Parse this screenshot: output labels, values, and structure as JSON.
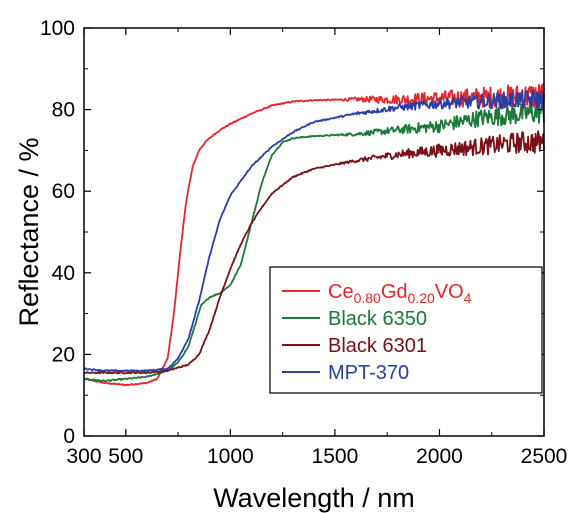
{
  "chart_data": {
    "type": "line",
    "title": "",
    "xlabel": "Wavelength / nm",
    "ylabel": "Reflectance / %",
    "xlim": [
      300,
      2500
    ],
    "ylim": [
      0,
      100
    ],
    "x_ticks": [
      300,
      500,
      1000,
      1500,
      2000,
      2500
    ],
    "x_tick_labels": [
      "300",
      "500",
      "1000",
      "1500",
      "2000",
      "2500"
    ],
    "y_ticks": [
      0,
      20,
      40,
      60,
      80,
      100
    ],
    "y_tick_labels": [
      "0",
      "20",
      "40",
      "60",
      "80",
      "100"
    ],
    "grid": false,
    "legend_position": "lower-right",
    "series": [
      {
        "name": "Ce0.80Gd0.20VO4",
        "name_parts": [
          {
            "text": "Ce",
            "sub": false
          },
          {
            "text": "0.80",
            "sub": true
          },
          {
            "text": "Gd",
            "sub": false
          },
          {
            "text": "0.20",
            "sub": true
          },
          {
            "text": "VO",
            "sub": false
          },
          {
            "text": "4",
            "sub": true
          }
        ],
        "color": "#e8252b",
        "noise": [
          [
            1800,
            1.2
          ],
          [
            2500,
            3.5
          ]
        ],
        "x": [
          300,
          400,
          500,
          600,
          650,
          700,
          730,
          760,
          790,
          820,
          850,
          880,
          900,
          950,
          1000,
          1100,
          1200,
          1300,
          1400,
          1600,
          1800,
          2000,
          2200,
          2400,
          2500
        ],
        "y": [
          14,
          13,
          12.5,
          13,
          14,
          19,
          30,
          45,
          58,
          66,
          70,
          72,
          73,
          75,
          76.5,
          79,
          81,
          82,
          82.3,
          82.5,
          82.5,
          82.7,
          83,
          83.2,
          83.5
        ]
      },
      {
        "name": "Black 6350",
        "name_parts": [
          {
            "text": "Black 6350",
            "sub": false
          }
        ],
        "color": "#1b7a3a",
        "noise": [
          [
            1800,
            1.0
          ],
          [
            2500,
            3.0
          ]
        ],
        "x": [
          300,
          400,
          500,
          600,
          700,
          750,
          800,
          830,
          860,
          900,
          950,
          1000,
          1050,
          1100,
          1150,
          1200,
          1250,
          1300,
          1400,
          1600,
          1800,
          2000,
          2200,
          2400,
          2500
        ],
        "y": [
          14,
          13.5,
          14,
          14.5,
          16,
          18,
          22,
          27,
          32,
          34,
          35,
          37,
          42,
          52,
          62,
          69,
          72,
          73,
          73.5,
          74,
          75,
          76,
          78,
          79,
          79.5
        ]
      },
      {
        "name": "Black 6301",
        "name_parts": [
          {
            "text": "Black 6301",
            "sub": false
          }
        ],
        "color": "#7b1018",
        "noise": [
          [
            1800,
            1.0
          ],
          [
            2500,
            3.0
          ]
        ],
        "x": [
          300,
          400,
          500,
          600,
          700,
          800,
          850,
          900,
          950,
          1000,
          1050,
          1100,
          1150,
          1200,
          1300,
          1400,
          1600,
          1800,
          2000,
          2200,
          2400,
          2500
        ],
        "y": [
          15.5,
          15.5,
          15.5,
          15.5,
          16,
          17.5,
          20,
          26,
          34,
          41,
          47,
          52,
          56,
          59.5,
          63.5,
          65.5,
          67.5,
          69,
          70,
          71,
          72,
          72
        ]
      },
      {
        "name": "MPT-370",
        "name_parts": [
          {
            "text": "MPT-370",
            "sub": false
          }
        ],
        "color": "#2a3fa6",
        "noise": [
          [
            1800,
            0.8
          ],
          [
            2500,
            2.5
          ]
        ],
        "x": [
          300,
          400,
          500,
          600,
          700,
          750,
          800,
          850,
          900,
          950,
          1000,
          1100,
          1200,
          1300,
          1400,
          1600,
          1800,
          2000,
          2200,
          2400,
          2500
        ],
        "y": [
          16.5,
          16,
          16,
          16,
          16.5,
          19,
          24,
          33,
          44,
          53,
          59,
          66,
          71,
          74.5,
          77,
          79,
          80.5,
          81.5,
          82,
          82.5,
          82.5
        ]
      }
    ]
  }
}
